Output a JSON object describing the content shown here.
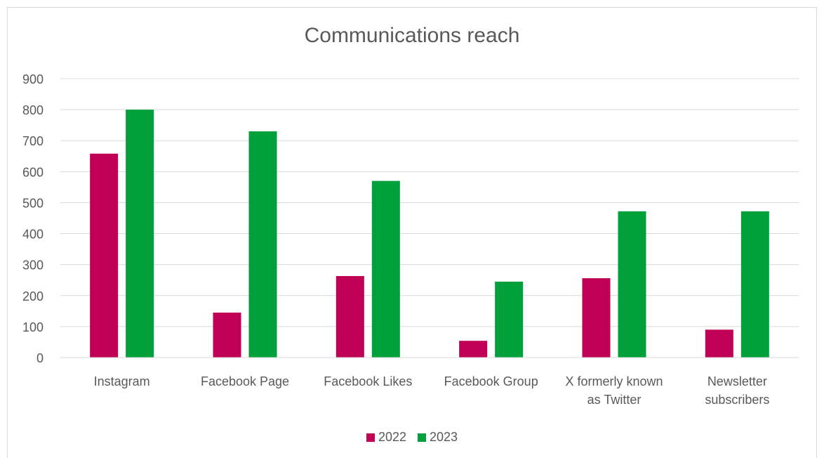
{
  "chart_data": {
    "type": "bar",
    "title": "Communications reach",
    "categories": [
      "Instagram",
      "Facebook Page",
      "Facebook Likes",
      "Facebook Group",
      "X formerly known as Twitter",
      "Newsletter subscribers"
    ],
    "category_lines": [
      [
        "Instagram"
      ],
      [
        "Facebook Page"
      ],
      [
        "Facebook Likes"
      ],
      [
        "Facebook Group"
      ],
      [
        "X formerly known",
        "as Twitter"
      ],
      [
        "Newsletter",
        "subscribers"
      ]
    ],
    "series": [
      {
        "name": "2022",
        "color": "#c00054",
        "values": [
          658,
          145,
          263,
          54,
          256,
          90
        ]
      },
      {
        "name": "2023",
        "color": "#00a13b",
        "values": [
          800,
          730,
          570,
          245,
          472,
          472
        ]
      }
    ],
    "ylim": [
      0,
      900
    ],
    "yticks": [
      0,
      100,
      200,
      300,
      400,
      500,
      600,
      700,
      800,
      900
    ],
    "grid": true,
    "legend_position": "bottom"
  }
}
